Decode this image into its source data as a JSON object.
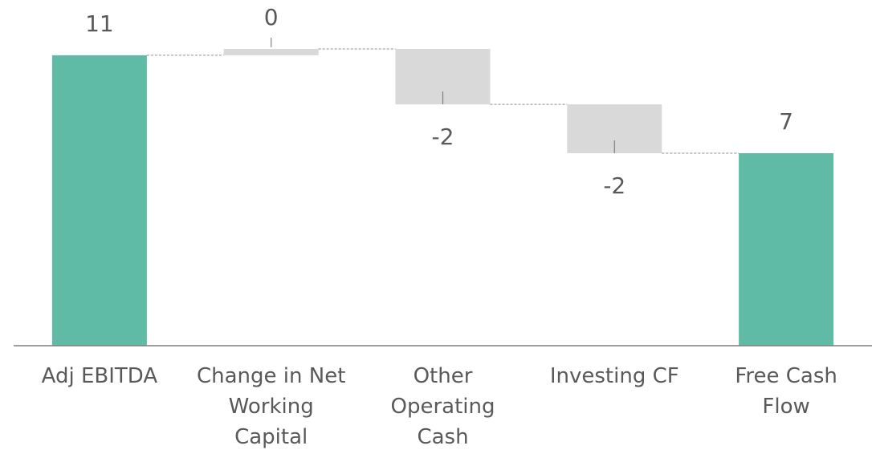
{
  "chart_data": {
    "type": "waterfall",
    "categories": [
      "Adj EBITDA",
      "Change in Net Working Capital",
      "Other Operating Cash",
      "Investing CF",
      "Free Cash Flow"
    ],
    "values": [
      11.0,
      0.24,
      -2.1,
      -1.85,
      7.29
    ],
    "value_labels": [
      "11",
      "0",
      "-2",
      "-2",
      "7"
    ],
    "measure": [
      "absolute",
      "relative",
      "relative",
      "relative",
      "total"
    ],
    "total_color": "#5fbba6",
    "change_color": "#d9d9d9"
  }
}
